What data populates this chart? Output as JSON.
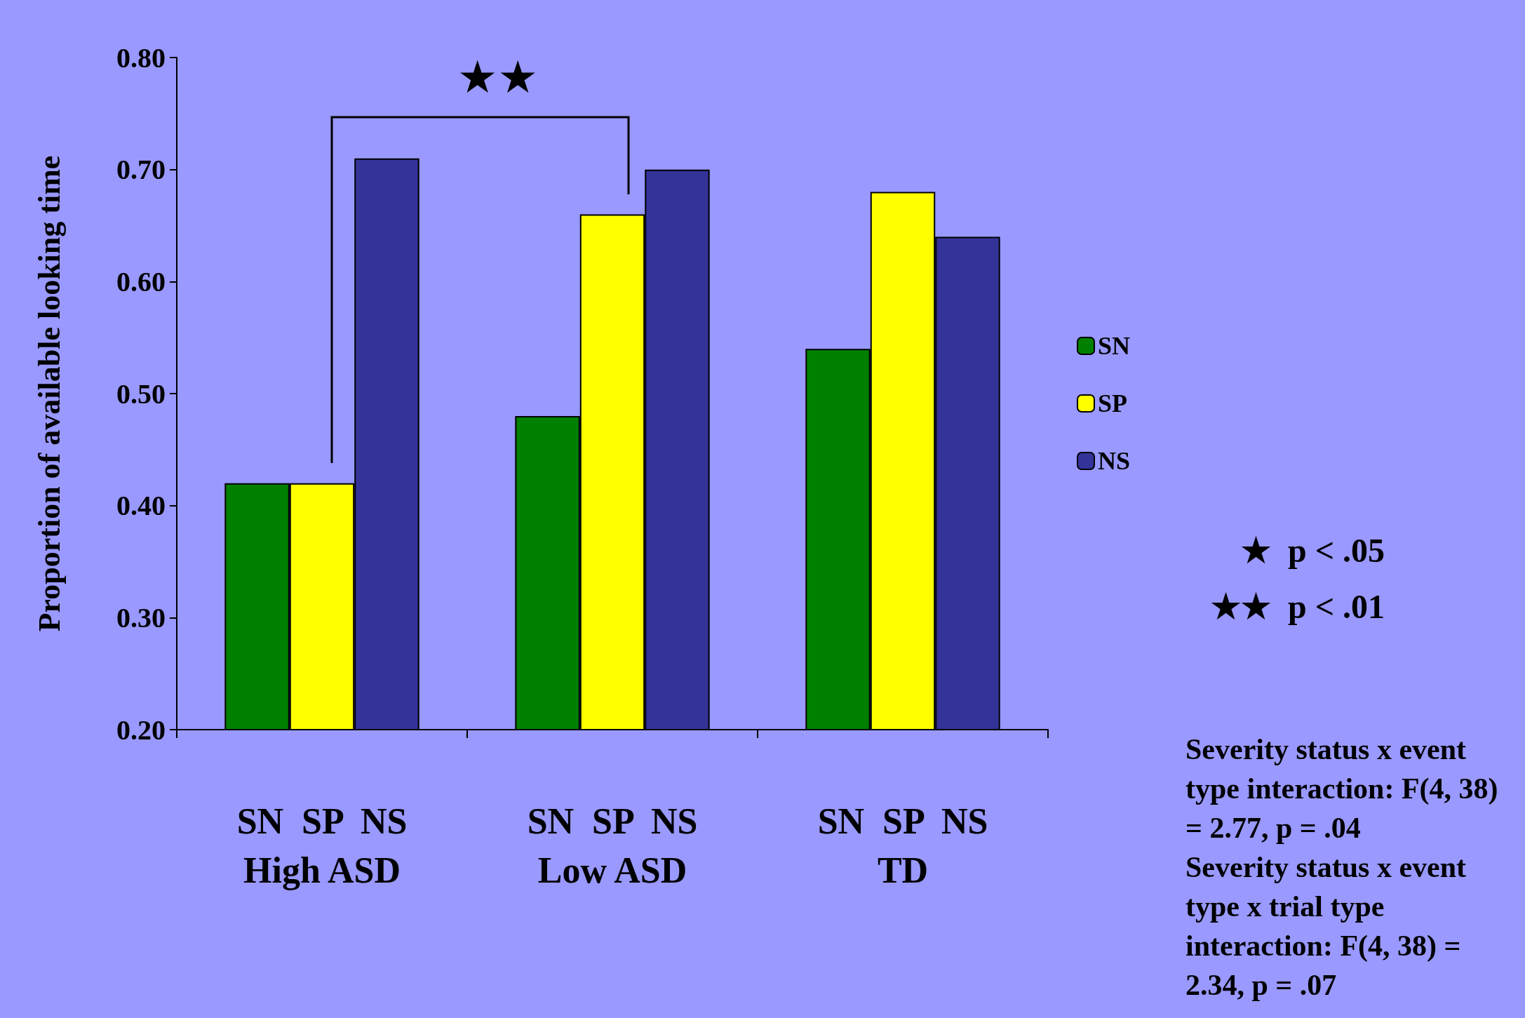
{
  "chart_data": {
    "type": "bar",
    "ylabel": "Proportion of available looking time",
    "categories": [
      "SN  SP  NS\nHigh ASD",
      "SN  SP  NS\nLow ASD",
      "SN  SP  NS\nTD"
    ],
    "series": [
      {
        "name": "SN",
        "color": "#008000",
        "values": [
          0.42,
          0.48,
          0.54
        ]
      },
      {
        "name": "SP",
        "color": "#ffff00",
        "values": [
          0.42,
          0.66,
          0.68
        ]
      },
      {
        "name": "NS",
        "color": "#333399",
        "values": [
          0.71,
          0.7,
          0.64
        ]
      }
    ],
    "ylim": [
      0.2,
      0.8
    ],
    "yticks": [
      {
        "value": 0.2,
        "label": "0.20"
      },
      {
        "value": 0.3,
        "label": "0.30"
      },
      {
        "value": 0.4,
        "label": "0.40"
      },
      {
        "value": 0.5,
        "label": "0.50"
      },
      {
        "value": 0.6,
        "label": "0.60"
      },
      {
        "value": 0.7,
        "label": "0.70"
      },
      {
        "value": 0.8,
        "label": "0.80"
      }
    ],
    "grid": false,
    "legend": "right",
    "annotations": [
      "★★",
      "★  p < .05",
      "★★  p < .01",
      "Severity status x event type interaction: F(4, 38) = 2.77, p = .04",
      "Severity status x event type x trial type interaction: F(4, 38) = 2.34, p = .07"
    ]
  }
}
